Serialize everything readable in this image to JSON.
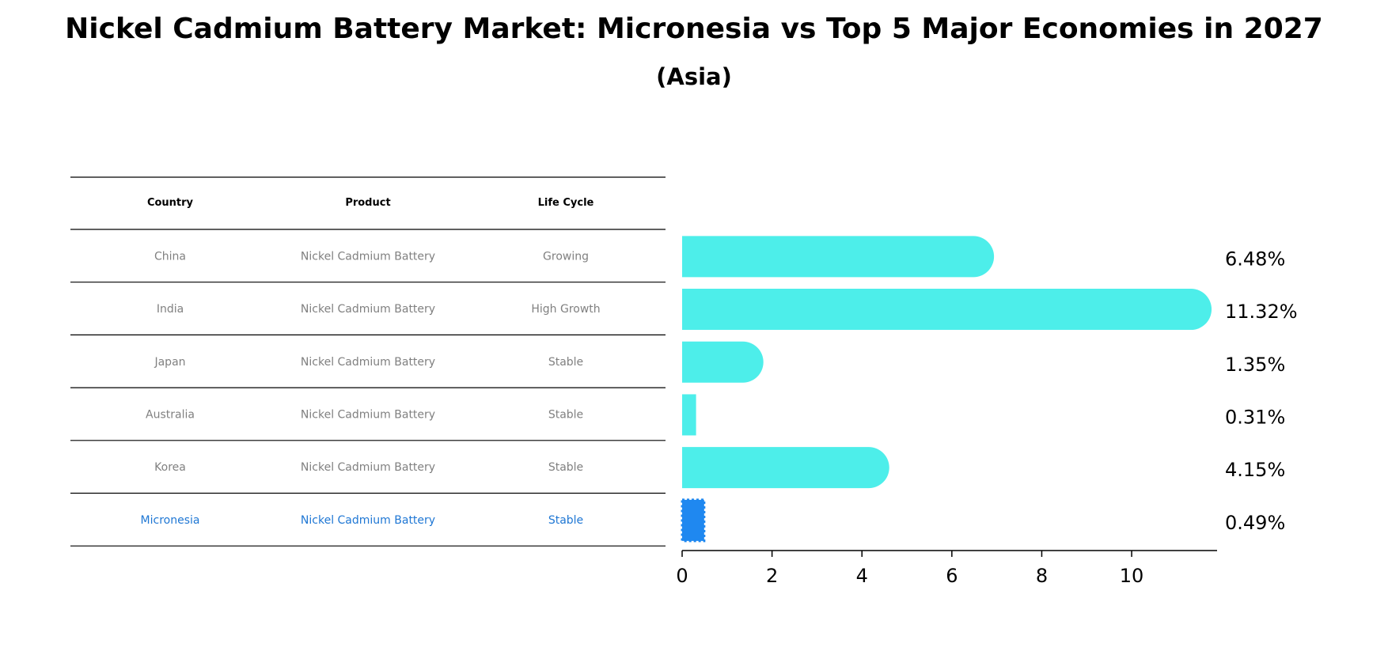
{
  "chart_data": {
    "type": "bar",
    "orientation": "horizontal",
    "title": "Nickel Cadmium Battery Market: Micronesia vs Top 5 Major Economies in 2027",
    "subtitle": "(Asia)",
    "table": {
      "columns": [
        "Country",
        "Product",
        "Life Cycle"
      ],
      "rows": [
        {
          "country": "China",
          "product": "Nickel Cadmium Battery",
          "life_cycle": "Growing"
        },
        {
          "country": "India",
          "product": "Nickel Cadmium Battery",
          "life_cycle": "High Growth"
        },
        {
          "country": "Japan",
          "product": "Nickel Cadmium Battery",
          "life_cycle": "Stable"
        },
        {
          "country": "Australia",
          "product": "Nickel Cadmium Battery",
          "life_cycle": "Stable"
        },
        {
          "country": "Korea",
          "product": "Nickel Cadmium Battery",
          "life_cycle": "Stable"
        },
        {
          "country": "Micronesia",
          "product": "Nickel Cadmium Battery",
          "life_cycle": "Stable"
        }
      ]
    },
    "categories": [
      "China",
      "India",
      "Japan",
      "Australia",
      "Korea",
      "Micronesia"
    ],
    "values": [
      6.48,
      11.32,
      1.35,
      0.31,
      4.15,
      0.49
    ],
    "value_labels": [
      "6.48%",
      "11.32%",
      "1.35%",
      "0.31%",
      "4.15%",
      "0.49%"
    ],
    "highlight": "Micronesia",
    "xlim": [
      0,
      11.9
    ],
    "xticks": [
      0,
      2,
      4,
      6,
      8,
      10
    ],
    "grid": false,
    "colors": {
      "bar": "#4deeea",
      "highlight": "#1f88f0",
      "highlight_text": "#1f77d4",
      "table_text": "#808080"
    }
  }
}
